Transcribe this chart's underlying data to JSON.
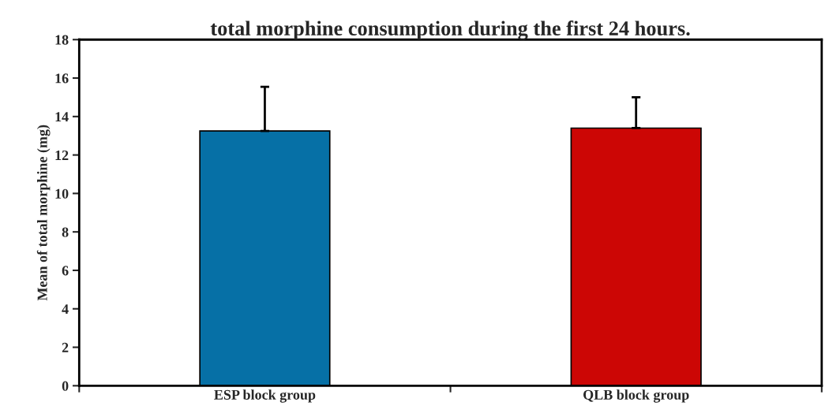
{
  "chart_data": {
    "type": "bar",
    "title": "total morphine consumption during the first 24 hours.",
    "ylabel": "Mean of total morphine (mg)",
    "categories": [
      "ESP block group",
      "QLB block group"
    ],
    "values": [
      13.25,
      13.4
    ],
    "colors": [
      "#0670a6",
      "#cc0605"
    ],
    "errors": [
      [
        13.25,
        15.55
      ],
      [
        13.4,
        15.0
      ]
    ],
    "ylim": [
      0,
      18
    ],
    "yticks": [
      0,
      2,
      4,
      6,
      8,
      10,
      12,
      14,
      16,
      18
    ],
    "grid": false
  }
}
